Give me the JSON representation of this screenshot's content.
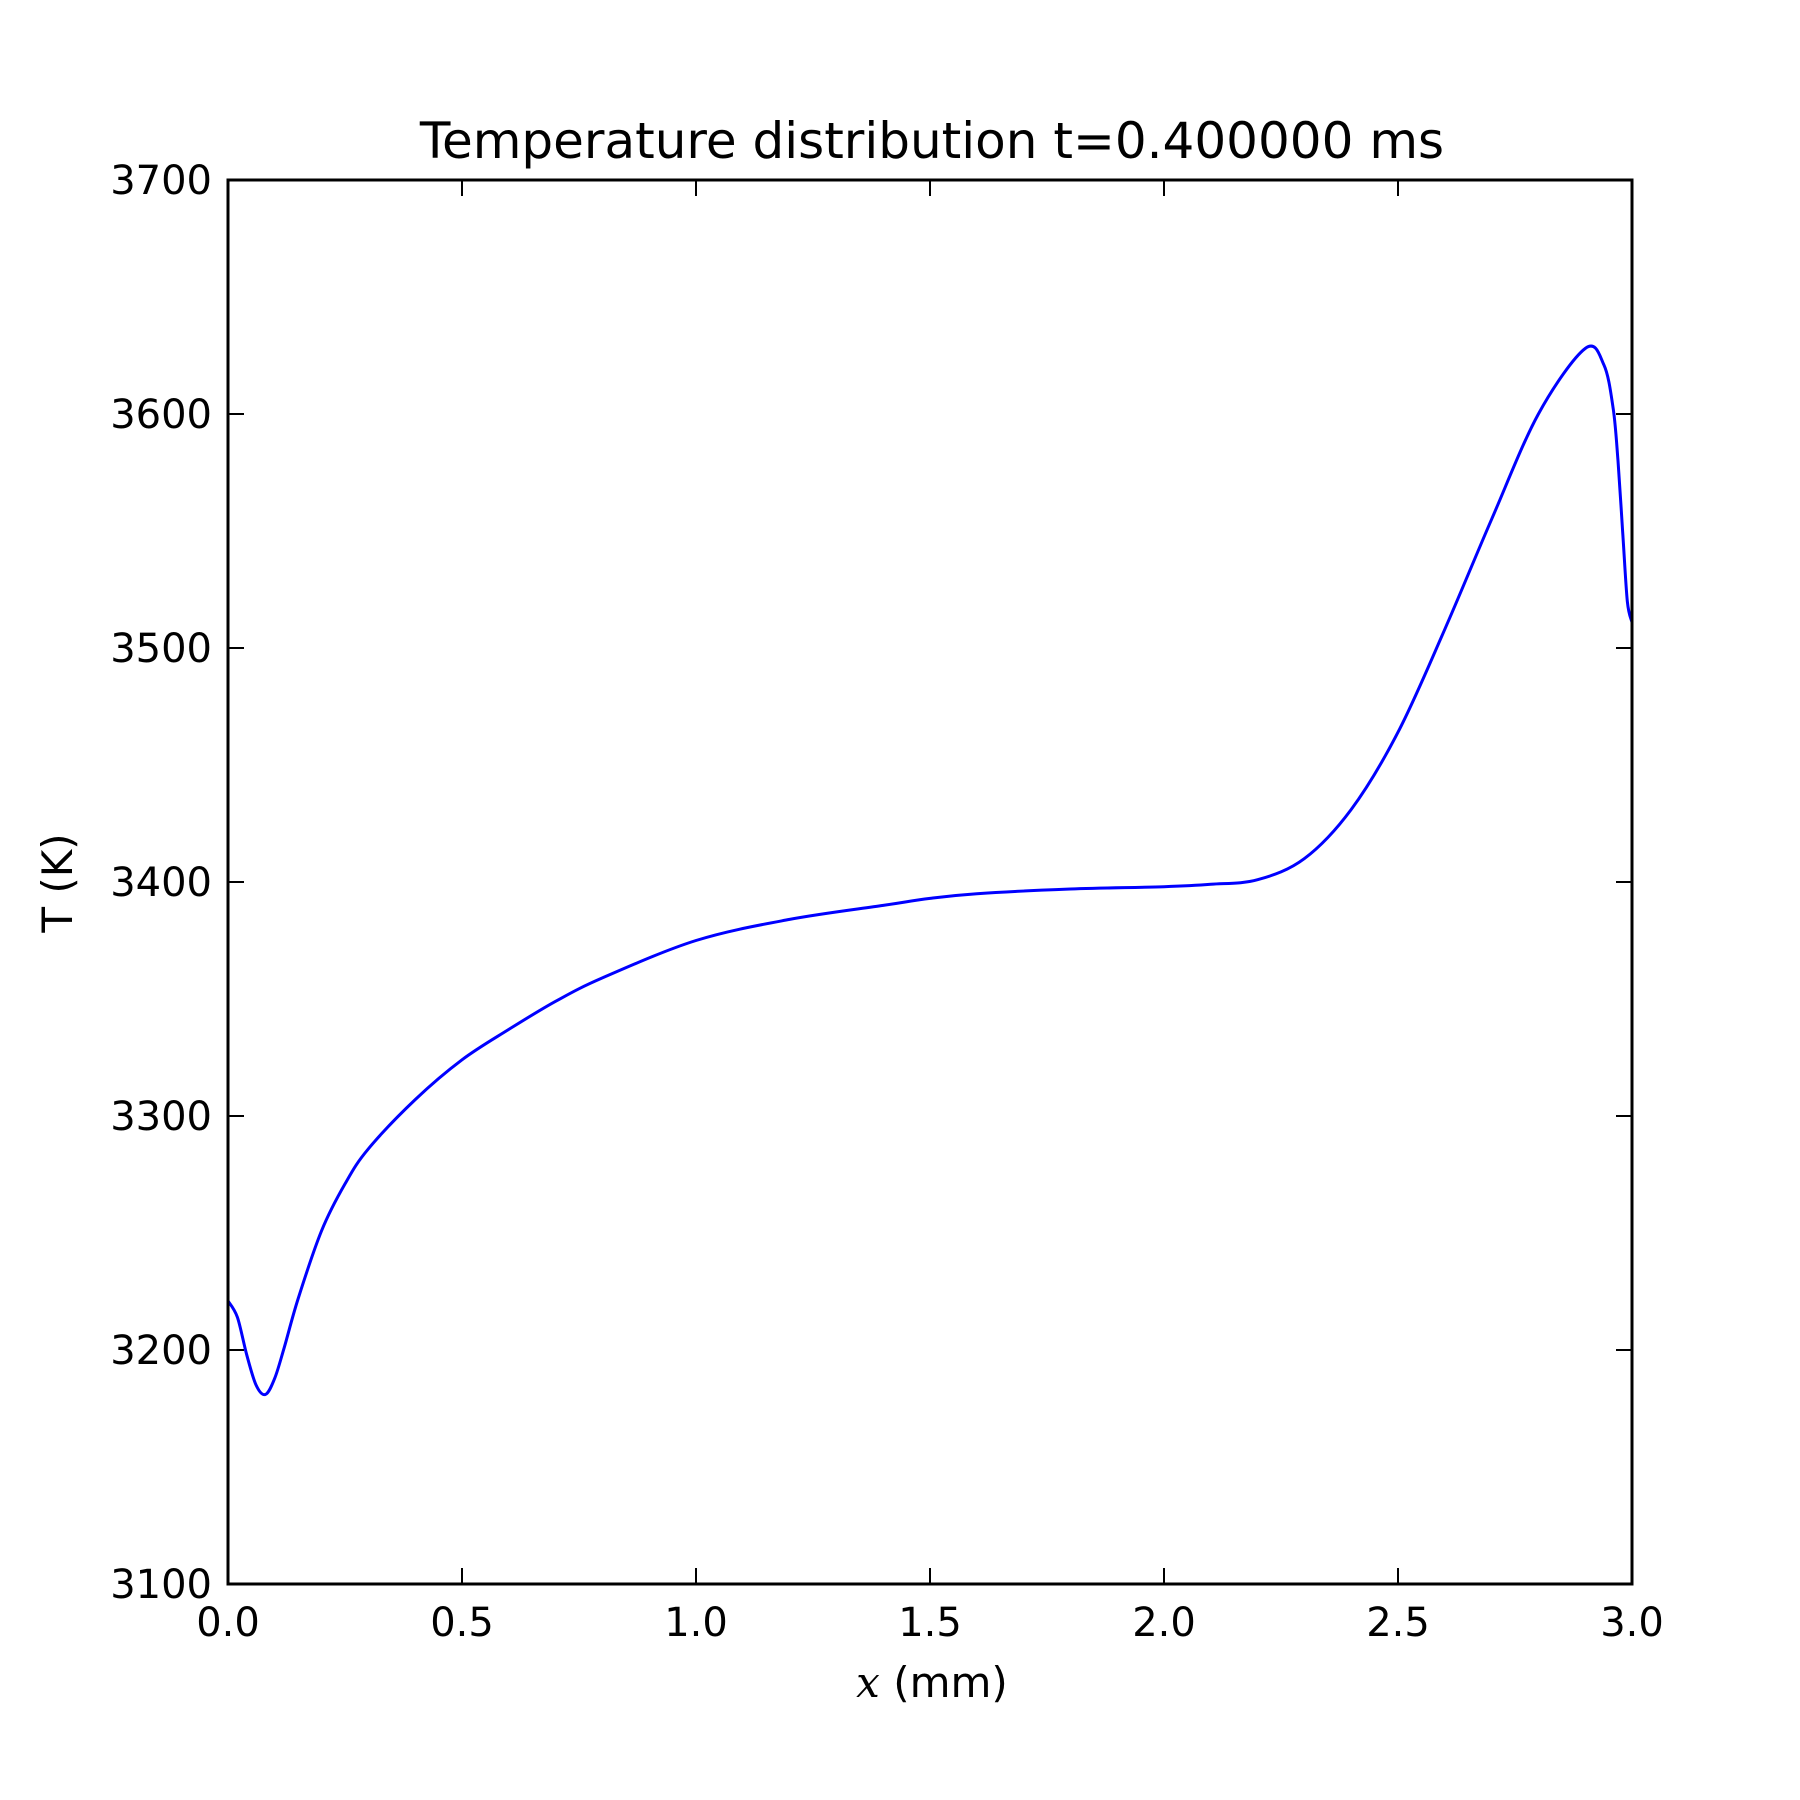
{
  "chart_data": {
    "type": "line",
    "title": "Temperature distribution t=0.400000 ms",
    "xlabel": {
      "var": "x",
      "unit": " (mm)"
    },
    "ylabel": "T (K)",
    "xlim": [
      0.0,
      3.0
    ],
    "ylim": [
      3100,
      3700
    ],
    "x_ticks": [
      "0.0",
      "0.5",
      "1.0",
      "1.5",
      "2.0",
      "2.5",
      "3.0"
    ],
    "y_ticks": [
      "3100",
      "3200",
      "3300",
      "3400",
      "3500",
      "3600",
      "3700"
    ],
    "grid": false,
    "legend": "none",
    "colors": {
      "line": "#0000ff",
      "axes": "#000000",
      "background": "#ffffff"
    },
    "series": [
      {
        "x": [
          0.0,
          0.02,
          0.04,
          0.06,
          0.08,
          0.1,
          0.12,
          0.15,
          0.2,
          0.25,
          0.3,
          0.4,
          0.5,
          0.6,
          0.7,
          0.8,
          1.0,
          1.2,
          1.4,
          1.5,
          1.6,
          1.8,
          2.0,
          2.1,
          2.2,
          2.3,
          2.4,
          2.5,
          2.6,
          2.7,
          2.8,
          2.9,
          2.94,
          2.96,
          2.97,
          2.98,
          2.99,
          3.0
        ],
        "y": [
          3221,
          3214,
          3198,
          3185,
          3181,
          3188,
          3201,
          3222,
          3251,
          3271,
          3286,
          3307,
          3324,
          3337,
          3349,
          3359,
          3375,
          3384,
          3390,
          3393,
          3395,
          3397,
          3398,
          3399,
          3401,
          3410,
          3431,
          3464,
          3508,
          3555,
          3600,
          3628,
          3621,
          3602,
          3580,
          3550,
          3520,
          3511
        ]
      }
    ]
  }
}
